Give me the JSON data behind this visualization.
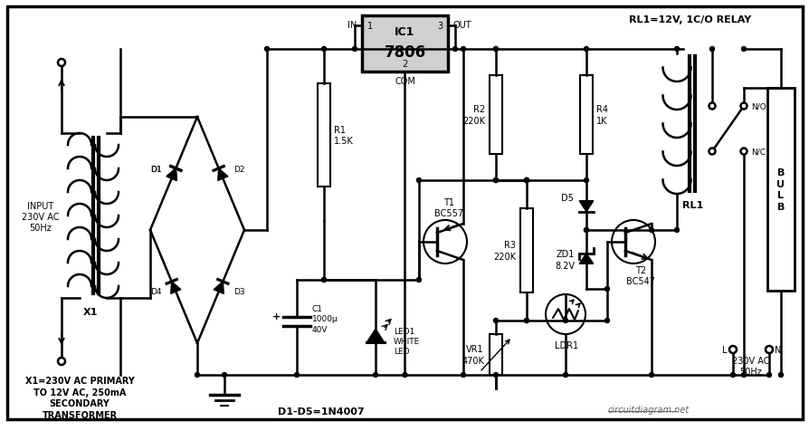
{
  "bg_color": "#ffffff",
  "line_color": "#000000",
  "website": "circuitdiagram.net",
  "rl1_label": "RL1=12V, 1C/O RELAY",
  "x1_desc": "X1=230V AC PRIMARY\nTO 12V AC, 250mA\nSECONDARY\nTRANSFORMER",
  "input_label": "INPUT\n230V AC\n50Hz",
  "d1d5_label": "D1-D5=1N4007"
}
